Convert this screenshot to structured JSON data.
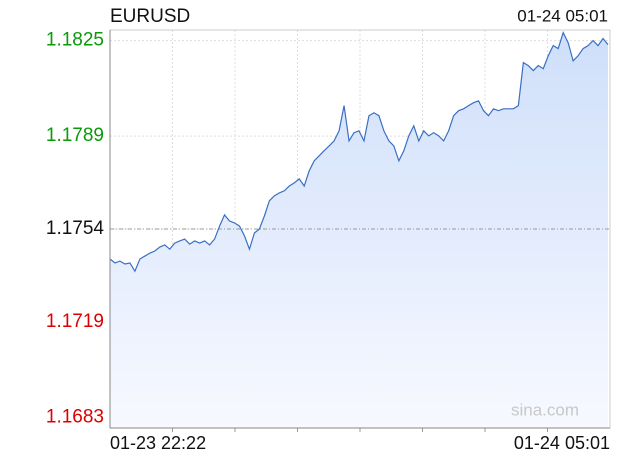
{
  "chart_data": {
    "type": "line",
    "title": "EURUSD",
    "timestamp": "01-24 05:01",
    "watermark": "sina.com",
    "x_labels": [
      "01-23 22:22",
      "01-24 05:01"
    ],
    "values": [
      1.17427,
      1.17412,
      1.17419,
      1.17408,
      1.17412,
      1.17381,
      1.17427,
      1.17438,
      1.17449,
      1.17457,
      1.17472,
      1.1748,
      1.17464,
      1.17487,
      1.17495,
      1.17502,
      1.17483,
      1.17495,
      1.17487,
      1.17495,
      1.1748,
      1.17502,
      1.17551,
      1.17593,
      1.1757,
      1.17563,
      1.17551,
      1.17514,
      1.17464,
      1.17525,
      1.1754,
      1.17589,
      1.17646,
      1.17665,
      1.17676,
      1.17684,
      1.17702,
      1.17714,
      1.17729,
      1.17702,
      1.17759,
      1.17797,
      1.17816,
      1.17835,
      1.17853,
      1.17872,
      1.1791,
      1.18005,
      1.17872,
      1.17903,
      1.1791,
      1.17872,
      1.17967,
      1.17978,
      1.17967,
      1.1791,
      1.17872,
      1.17853,
      1.17797,
      1.17835,
      1.17891,
      1.17929,
      1.17872,
      1.1791,
      1.17891,
      1.17903,
      1.17891,
      1.17872,
      1.1791,
      1.17967,
      1.17986,
      1.17993,
      1.18005,
      1.18016,
      1.18023,
      1.17986,
      1.17967,
      1.17993,
      1.17986,
      1.17993,
      1.17993,
      1.17993,
      1.18005,
      1.18167,
      1.18156,
      1.18137,
      1.18156,
      1.18144,
      1.18193,
      1.18231,
      1.1822,
      1.1828,
      1.18242,
      1.18174,
      1.18193,
      1.1822,
      1.18231,
      1.1825,
      1.18231,
      1.18258,
      1.18235
    ],
    "color": "#3a6fc4",
    "reference": 1.1754,
    "up_color": "#0a9a0a",
    "down_color": "#dd0000",
    "ylim": [
      1.1679,
      1.1829
    ],
    "yticks": [
      1.1683,
      1.1719,
      1.1754,
      1.1789,
      1.1825
    ],
    "grid": true
  }
}
